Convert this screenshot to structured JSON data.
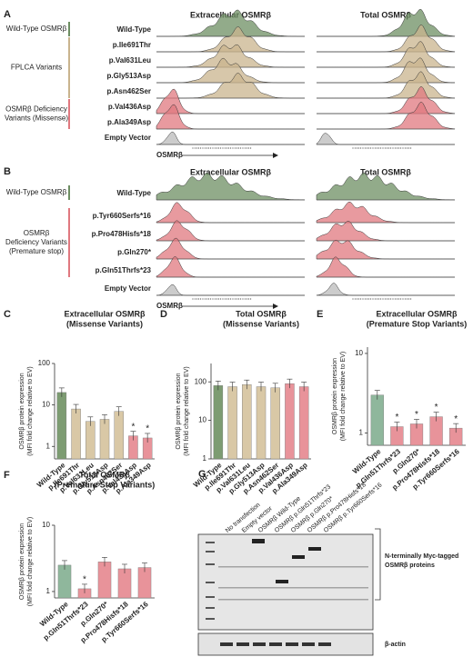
{
  "panel_a": {
    "letter": "A",
    "titles": [
      "Extracellular OSMRβ",
      "Total OSMRβ"
    ],
    "groups": [
      [
        "Wild-Type OSMRβ"
      ],
      [
        "FPLCA Variants"
      ],
      [
        "OSMRβ Deficiency",
        "Variants (Missense)"
      ]
    ],
    "rows": [
      "Wild-Type",
      "p.Ile691Thr",
      "p.Val631Leu",
      "p.Gly513Asp",
      "p.Asn462Ser",
      "p.Val436Asp",
      "p.Ala349Asp",
      "Empty Vector"
    ],
    "axis_label": "OSMRβ"
  },
  "panel_b": {
    "letter": "B",
    "titles": [
      "Extracellular OSMRβ",
      "Total OSMRβ"
    ],
    "groups": [
      [
        "Wild-Type OSMRβ"
      ],
      [
        "OSMRβ",
        "Deficiency Variants",
        "(Premature stop)"
      ]
    ],
    "rows": [
      "Wild-Type",
      "p.Tyr660Serfs*16",
      "p.Pro478Hisfs*18",
      "p.Gln270*",
      "p.Gln51Thrfs*23",
      "Empty Vector"
    ],
    "axis_label": "OSMRβ"
  },
  "chart_data": [
    {
      "type": "bar",
      "panel_label": "C",
      "title": [
        "Extracellular OSMRβ",
        "(Missense Variants)"
      ],
      "y_label": [
        "OSMRβ protein expression",
        "(MFI fold change relative to EV)"
      ],
      "categories": [
        "Wild-Type",
        "p.Ile691Thr",
        "p.Val631Leu",
        "p.Gly513Asp",
        "p.Asn462Ser",
        "p.Val436Asp",
        "p.Ala349Asp"
      ],
      "values": [
        20,
        8,
        4,
        4.5,
        7,
        1.8,
        1.6
      ],
      "colors": [
        "#7d9c72",
        "#d9c8a6",
        "#d9c8a6",
        "#d9c8a6",
        "#d9c8a6",
        "#e8939a",
        "#e8939a"
      ],
      "markers": [
        null,
        null,
        null,
        null,
        null,
        "*",
        "*"
      ],
      "log_scale": true,
      "ylim": [
        0.5,
        100
      ],
      "yticks": [
        1,
        10,
        100
      ]
    },
    {
      "type": "bar",
      "panel_label": "D",
      "title": [
        "Total OSMRβ",
        "(Missense Variants)"
      ],
      "y_label": [
        "OSMRβ protein expression",
        "(MFI fold change relative to EV)"
      ],
      "categories": [
        "Wild-Type",
        "p.Ile691Thr",
        "p.Val631Leu",
        "p.Gly513Asp",
        "p.Asn462Ser",
        "p.Val436Asp",
        "p.Ala349Asp"
      ],
      "values": [
        80,
        75,
        85,
        75,
        70,
        90,
        75
      ],
      "colors": [
        "#7d9c72",
        "#d9c8a6",
        "#d9c8a6",
        "#d9c8a6",
        "#d9c8a6",
        "#e8939a",
        "#e8939a"
      ],
      "log_scale": true,
      "ylim": [
        1,
        300
      ],
      "yticks": [
        1,
        10,
        100
      ]
    },
    {
      "type": "bar",
      "panel_label": "E",
      "title": [
        "Extracellular OSMRβ",
        "(Premature Stop Variants)"
      ],
      "y_label": [
        "OSMRβ protein expression",
        "(MFI fold change relative to EV)"
      ],
      "categories": [
        "Wild-Type",
        "p.Gln51Thrfs*23",
        "p.Gln270*",
        "p.Pro478Hisfs*18",
        "p.Tyr660Serfs*16"
      ],
      "values": [
        3,
        1.2,
        1.3,
        1.6,
        1.15
      ],
      "colors": [
        "#8fb79c",
        "#e8939a",
        "#e8939a",
        "#e8939a",
        "#e8939a"
      ],
      "markers": [
        null,
        "*",
        "*",
        "*",
        "*"
      ],
      "log_scale": true,
      "ylim": [
        0.7,
        12
      ],
      "yticks": [
        1,
        10
      ]
    },
    {
      "type": "bar",
      "panel_label": "F",
      "title": [
        "Total OSMRβ",
        "(Premature Stop Variants)"
      ],
      "y_label": [
        "OSMRβ protein expression",
        "(MFI fold change relative to EV)"
      ],
      "categories": [
        "Wild-Type",
        "p.Gln51Thrfs*23",
        "p.Gln270*",
        "p.Pro478Hisfs*18",
        "p.Tyr660Serfs*16"
      ],
      "values": [
        2.5,
        1.1,
        2.8,
        2.2,
        2.3
      ],
      "colors": [
        "#8fb79c",
        "#e8939a",
        "#e8939a",
        "#e8939a",
        "#e8939a"
      ],
      "markers": [
        null,
        "*",
        null,
        null,
        null
      ],
      "log_scale": true,
      "ylim": [
        0.8,
        10
      ],
      "yticks": [
        1,
        10
      ]
    }
  ],
  "panel_g": {
    "letter": "G",
    "lanes": [
      "No transfection",
      "Empty vector",
      "OSMRβ Wild-Type",
      "OSMRβ p.Gln51Thrfs*23",
      "OSMRβ p.Gln270*",
      "OSMRβ p.Pro478Hisfs*18",
      "OSMRβ p.Tyr660Serfs*16"
    ],
    "bracket_label": [
      "N-terminally Myc-tagged",
      "OSMRβ proteins"
    ],
    "loading_label": "β-actin"
  }
}
